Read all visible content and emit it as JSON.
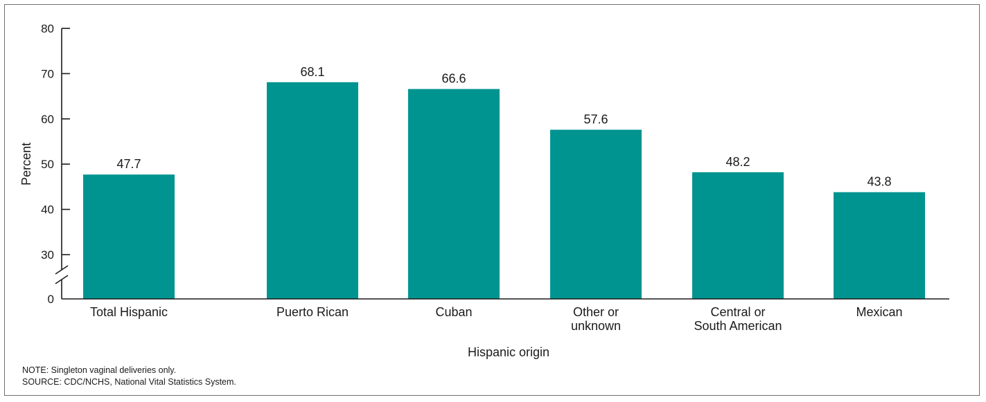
{
  "chart_data": {
    "type": "bar",
    "categories": [
      "Total Hispanic",
      "Puerto Rican",
      "Cuban",
      "Other or unknown",
      "Central or South American",
      "Mexican"
    ],
    "category_lines": [
      [
        "Total Hispanic"
      ],
      [
        "Puerto Rican"
      ],
      [
        "Cuban"
      ],
      [
        "Other or",
        "unknown"
      ],
      [
        "Central or",
        "South American"
      ],
      [
        "Mexican"
      ]
    ],
    "values": [
      47.7,
      68.1,
      66.6,
      57.6,
      48.2,
      43.8
    ],
    "data_labels": [
      "47.7",
      "68.1",
      "66.6",
      "57.6",
      "48.2",
      "43.8"
    ],
    "xlabel": "Hispanic origin",
    "ylabel": "Percent",
    "yticks": [
      0,
      30,
      40,
      50,
      60,
      70,
      80
    ],
    "ylim": [
      0,
      80
    ],
    "axis_break": true,
    "grid": false,
    "bar_color": "#009490"
  },
  "notes": {
    "note": "NOTE: Singleton vaginal deliveries only.",
    "source": "SOURCE: CDC/NCHS, National Vital Statistics System."
  }
}
